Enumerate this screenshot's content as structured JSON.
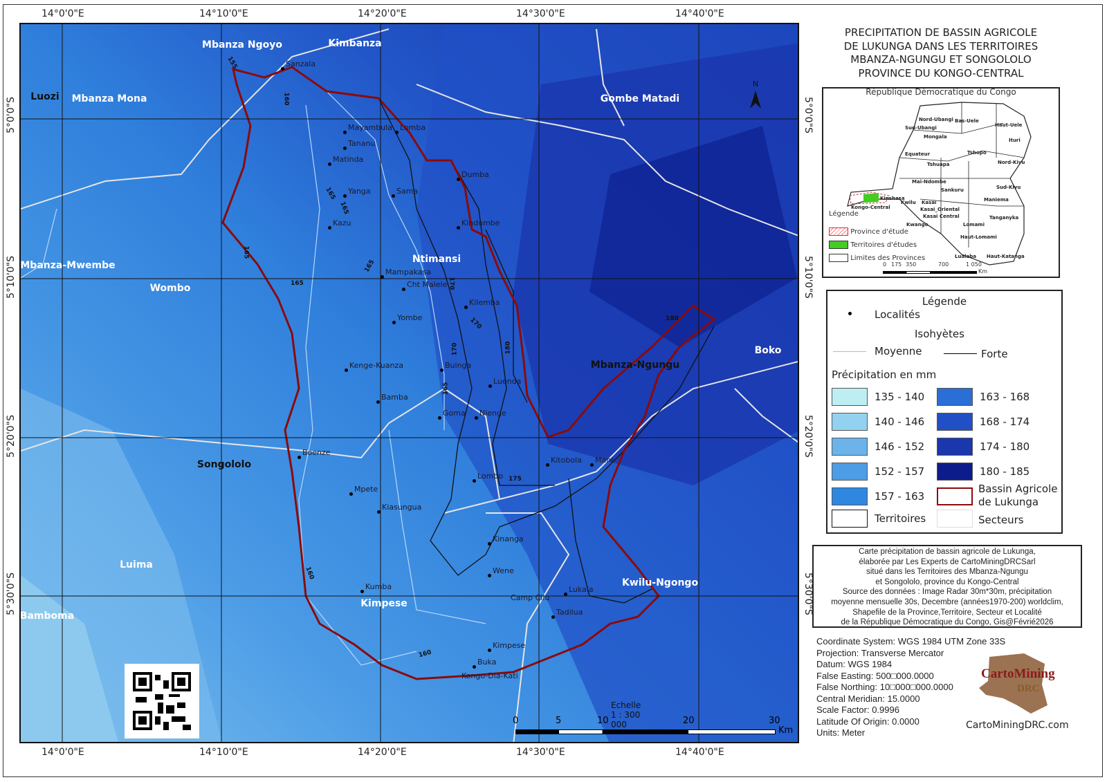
{
  "title": [
    "PRECIPITATION DE BASSIN AGRICOLE",
    "DE LUKUNGA DANS LES TERRITOIRES",
    "MBANZA-NGUNGU ET SONGOLOLO",
    "PROVINCE DU KONGO-CENTRAL"
  ],
  "grid": {
    "lon_labels": [
      "14°0'0\"E",
      "14°10'0\"E",
      "14°20'0\"E",
      "14°30'0\"E",
      "14°40'0\"E"
    ],
    "lat_labels": [
      "5°0'0\"S",
      "5°10'0\"S",
      "5°20'0\"S",
      "5°30'0\"S"
    ]
  },
  "territories": [
    "Mbanza Ngoyo",
    "Kimbanza",
    "Luozi",
    "Mbanza Mona",
    "Gombe Matadi",
    "Mbanza-Mwembe",
    "Wombo",
    "Ntimansi",
    "Mbanza-Ngungu",
    "Boko",
    "Songololo",
    "Luima",
    "Kwilu-Ngongo",
    "Kimpese",
    "Bamboma"
  ],
  "localities": [
    "Sanzala",
    "Mayambula",
    "Lomba",
    "Tananu",
    "Matinda",
    "Yanga",
    "Sama",
    "Kazu",
    "Dumba",
    "Kindombe",
    "Mampakasa",
    "Cht Malele",
    "Kilemba",
    "Yombe",
    "Kenge-Kuanza",
    "Buinga",
    "Bamba",
    "Luenda",
    "Goma",
    "Nienge",
    "Boenze",
    "Kitobola",
    "Mani",
    "Lombo",
    "Mpete",
    "Kiasungua",
    "Kinanga",
    "Wene",
    "Kumba",
    "Camp Cilu",
    "Lukala",
    "Tadilua",
    "Kimpese",
    "Buka",
    "Kongo-Dia-Kati"
  ],
  "isohyet_labels": [
    "155",
    "160",
    "165",
    "165",
    "165",
    "165",
    "165",
    "170",
    "170",
    "170",
    "175",
    "180",
    "180",
    "165",
    "160",
    "160"
  ],
  "north_arrow": "N",
  "scale": {
    "text": "Echelle 1 : 300 000",
    "ticks": [
      "0",
      "5",
      "10",
      "20",
      "30"
    ],
    "unit": "Km"
  },
  "inset": {
    "title": "République Démocratique du Congo",
    "provinces": [
      "Nord-Ubangi",
      "Bas-Uele",
      "Haut-Uele",
      "Sud-Ubangi",
      "Mongala",
      "Ituri",
      "Tshopo",
      "Equateur",
      "Tshuapa",
      "Nord-Kivu",
      "Mai-Ndombe",
      "Sankuru",
      "Sud-Kivu",
      "Kinshasa",
      "Kwilu",
      "Kasai",
      "Maniema",
      "Kongo-Central",
      "Kasai_Oriental",
      "Kasai Central",
      "Lomami",
      "Kwango",
      "Tanganyka",
      "Haut-Lomami",
      "Lualaba",
      "Haut-Katanga"
    ],
    "legend_title": "Légende",
    "legend": [
      "Province d'étude",
      "Territoires d'études",
      "Limites des Provinces"
    ],
    "scale_ticks": [
      "0",
      "175",
      "350",
      "700",
      "1 050"
    ],
    "scale_unit": "Km"
  },
  "legend": {
    "title": "Légende",
    "localites": "Localités",
    "isohyetes": "Isohyètes",
    "moyenne": "Moyenne",
    "forte": "Forte",
    "precip_title": "Précipitation en mm",
    "classes": [
      {
        "label": "135 - 140",
        "color": "#bdeef2"
      },
      {
        "label": "140 - 146",
        "color": "#92d2f0"
      },
      {
        "label": "146 - 152",
        "color": "#6cb3ea"
      },
      {
        "label": "152 - 157",
        "color": "#4c9ce6"
      },
      {
        "label": "157 - 163",
        "color": "#2f87e0"
      },
      {
        "label": "163 - 168",
        "color": "#2a6ed6"
      },
      {
        "label": "168 - 174",
        "color": "#2150c6"
      },
      {
        "label": "174 - 180",
        "color": "#1a37ae"
      },
      {
        "label": "180 - 185",
        "color": "#0c1c8a"
      }
    ],
    "bassin": "Bassin Agricole de Lukunga",
    "territoires": "Territoires",
    "secteurs": "Secteurs",
    "colors": {
      "bassin": "#8b0a0a",
      "territoires": "#111111",
      "secteurs": "#e0e0e0",
      "study_territory": "#44cc22"
    }
  },
  "credit": [
    "Carte précipitation de bassin agricole de Lukunga,",
    "élaborée par Les Experts de CartoMiningDRCSarl",
    "situé dans les Territoires des Mbanza-Ngungu",
    "et Songololo, province du Kongo-Central",
    "Source des données : Image Radar 30m*30m, précipitation",
    "moyenne mensuelle 30s, Decembre (années1970-200) worldclim,",
    "Shapefile  de la Province,Territoire, Secteur et Localité",
    "de la République Démocratique du Congo, Gis@Févrié2026"
  ],
  "projection": [
    "Coordinate System: WGS 1984 UTM Zone 33S",
    "Projection: Transverse Mercator",
    "Datum: WGS 1984",
    "False Easting: 500□000.0000",
    "False Northing: 10□000□000.0000",
    "Central Meridian: 15.0000",
    "Scale Factor: 0.9996",
    "Latitude Of Origin: 0.0000",
    "Units: Meter"
  ],
  "logo": {
    "line1": "CartoMining",
    "line2": "DRC",
    "url": "CartoMiningDRC.com"
  }
}
